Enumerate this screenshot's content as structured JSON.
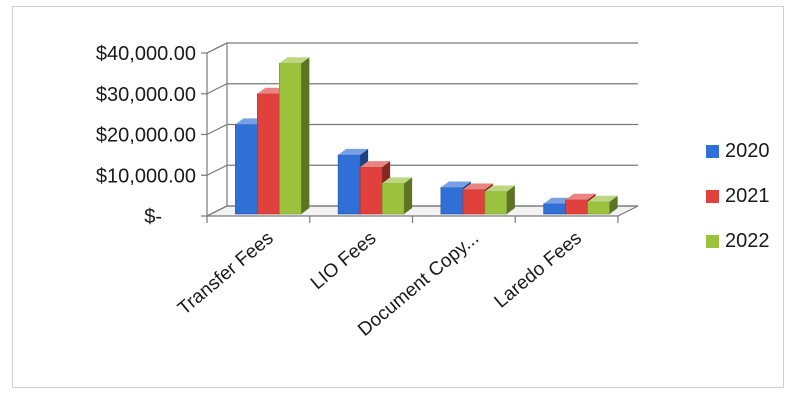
{
  "chart_data": {
    "type": "bar",
    "categories": [
      "Transfer Fees",
      "LIO Fees",
      "Document Copy...",
      "Laredo Fees"
    ],
    "series": [
      {
        "name": "2020",
        "values": [
          22500,
          15000,
          7000,
          3000
        ],
        "color": "#2f6fd6"
      },
      {
        "name": "2021",
        "values": [
          30000,
          12000,
          6500,
          4000
        ],
        "color": "#e0413c"
      },
      {
        "name": "2022",
        "values": [
          37500,
          8000,
          6000,
          3500
        ],
        "color": "#9ac23c"
      }
    ],
    "ylim": [
      0,
      40000
    ],
    "yticks": [
      0,
      10000,
      20000,
      30000,
      40000
    ],
    "ytick_labels": [
      "$-",
      "$10,000.00",
      "$20,000.00",
      "$30,000.00",
      "$40,000.00"
    ],
    "legend_position": "right",
    "grid": true,
    "style": "3d-clustered-column"
  }
}
